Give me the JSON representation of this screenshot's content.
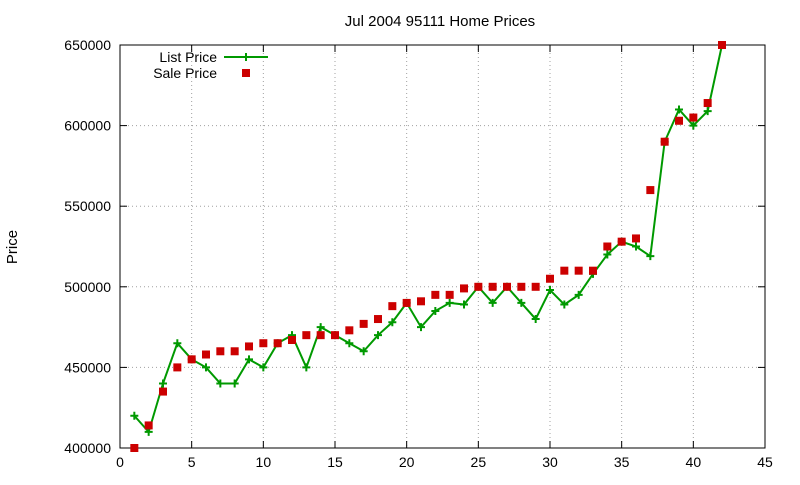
{
  "chart_data": {
    "type": "line",
    "title": "Jul 2004 95111 Home Prices",
    "xlabel": "",
    "ylabel": "Price",
    "xlim": [
      0,
      45
    ],
    "ylim": [
      400000,
      650000
    ],
    "xticks": [
      0,
      5,
      10,
      15,
      20,
      25,
      30,
      35,
      40,
      45
    ],
    "yticks": [
      400000,
      450000,
      500000,
      550000,
      600000,
      650000
    ],
    "grid": true,
    "legend_position": "top-left",
    "series": [
      {
        "name": "List Price",
        "style": "line-plus",
        "color": "#009900",
        "x": [
          1,
          2,
          3,
          4,
          5,
          6,
          7,
          8,
          9,
          10,
          11,
          12,
          13,
          14,
          15,
          16,
          17,
          18,
          19,
          20,
          21,
          22,
          23,
          24,
          25,
          26,
          27,
          28,
          29,
          30,
          31,
          32,
          33,
          34,
          35,
          36,
          37,
          38,
          39,
          40,
          41,
          42
        ],
        "values": [
          420000,
          410000,
          440000,
          465000,
          455000,
          450000,
          440000,
          440000,
          455000,
          450000,
          465000,
          470000,
          450000,
          475000,
          470000,
          465000,
          460000,
          470000,
          478000,
          490000,
          475000,
          485000,
          490000,
          489000,
          500000,
          490000,
          500000,
          490000,
          480000,
          498000,
          489000,
          495000,
          508000,
          520000,
          528000,
          525000,
          519000,
          590000,
          610000,
          600000,
          609000,
          650000
        ]
      },
      {
        "name": "Sale Price",
        "style": "square",
        "color": "#cc0000",
        "x": [
          1,
          2,
          3,
          4,
          5,
          6,
          7,
          8,
          9,
          10,
          11,
          12,
          13,
          14,
          15,
          16,
          17,
          18,
          19,
          20,
          21,
          22,
          23,
          24,
          25,
          26,
          27,
          28,
          29,
          30,
          31,
          32,
          33,
          34,
          35,
          36,
          37,
          38,
          39,
          40,
          41,
          42
        ],
        "values": [
          400000,
          414000,
          435000,
          450000,
          455000,
          458000,
          460000,
          460000,
          463000,
          465000,
          465000,
          467000,
          470000,
          470000,
          470000,
          473000,
          477000,
          480000,
          488000,
          490000,
          491000,
          495000,
          495000,
          499000,
          500000,
          500000,
          500000,
          500000,
          500000,
          505000,
          510000,
          510000,
          510000,
          525000,
          528000,
          530000,
          560000,
          590000,
          603000,
          605000,
          614000,
          650000
        ]
      }
    ]
  }
}
